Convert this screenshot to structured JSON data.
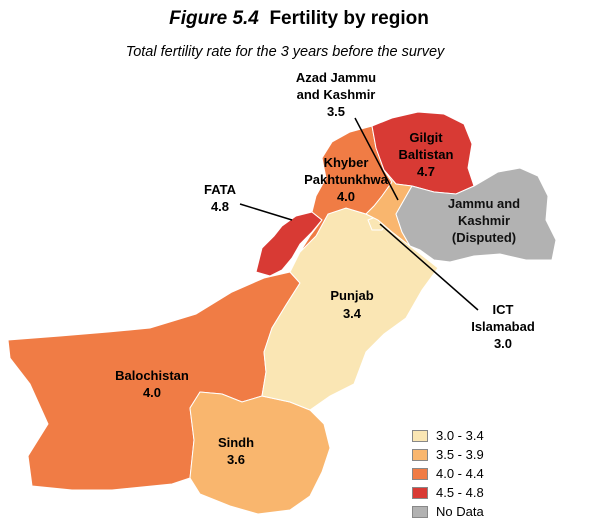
{
  "header": {
    "figure_number": "Figure 5.4",
    "title": "Fertility by region",
    "subtitle": "Total fertility rate for the 3 years before the survey"
  },
  "regions": [
    {
      "name": "Gilgit Baltistan",
      "value": "4.7",
      "color": "#d83a34"
    },
    {
      "name": "Azad Jammu and Kashmir",
      "value": "3.5",
      "color": "#f9b66e"
    },
    {
      "name": "Khyber Pakhtunkhwa",
      "value": "4.0",
      "color": "#f07c45"
    },
    {
      "name": "FATA",
      "value": "4.8",
      "color": "#d83a34"
    },
    {
      "name": "Jammu and Kashmir (Disputed)",
      "value": "",
      "color": "#b2b2b2"
    },
    {
      "name": "Punjab",
      "value": "3.4",
      "color": "#fae6b4"
    },
    {
      "name": "ICT Islamabad",
      "value": "3.0",
      "color": "#fae6b4"
    },
    {
      "name": "Balochistan",
      "value": "4.0",
      "color": "#f07c45"
    },
    {
      "name": "Sindh",
      "value": "3.6",
      "color": "#f9b66e"
    }
  ],
  "labels": {
    "ajk_line1": "Azad Jammu",
    "ajk_line2": "and Kashmir",
    "ajk_value": "3.5",
    "gb_line1": "Gilgit",
    "gb_line2": "Baltistan",
    "gb_value": "4.7",
    "kp_line1": "Khyber",
    "kp_line2": "Pakhtunkhwa",
    "kp_value": "4.0",
    "fata_line1": "FATA",
    "fata_value": "4.8",
    "jk_line1": "Jammu and",
    "jk_line2": "Kashmir",
    "jk_line3": "(Disputed)",
    "punjab_line1": "Punjab",
    "punjab_value": "3.4",
    "ict_line1": "ICT",
    "ict_line2": "Islamabad",
    "ict_value": "3.0",
    "bal_line1": "Balochistan",
    "bal_value": "4.0",
    "sindh_line1": "Sindh",
    "sindh_value": "3.6"
  },
  "legend": [
    {
      "label": "3.0 - 3.4",
      "color": "#fae6b4"
    },
    {
      "label": "3.5 - 3.9",
      "color": "#f9b66e"
    },
    {
      "label": "4.0 - 4.4",
      "color": "#f07c45"
    },
    {
      "label": "4.5 - 4.8",
      "color": "#d83a34"
    },
    {
      "label": "No Data",
      "color": "#b2b2b2"
    }
  ]
}
